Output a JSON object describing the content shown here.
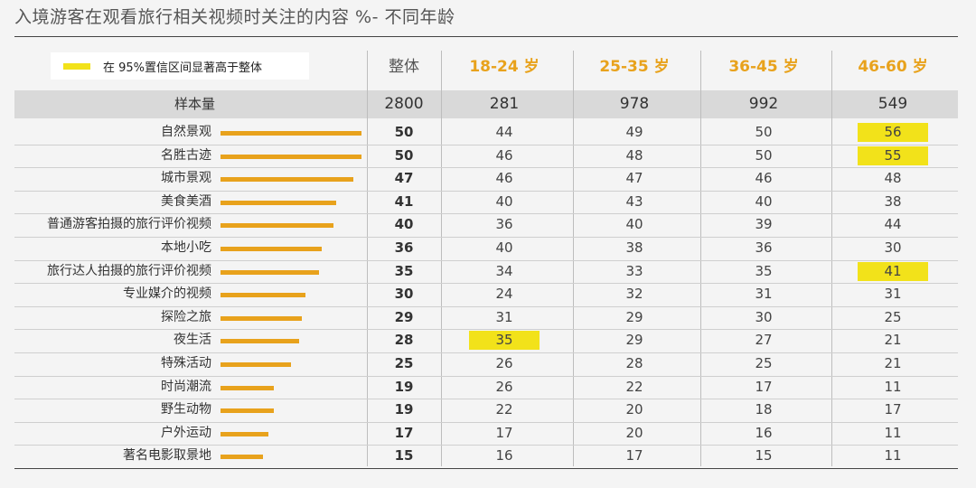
{
  "title": "入境游客在观看旅行相关视频时关注的内容 %- 不同年龄",
  "legend": {
    "label": "在 95%置信区间显著高于整体",
    "color": "#f2e21a"
  },
  "colors": {
    "bar": "#e8a21c",
    "highlight": "#f2e21a",
    "age_header": "#e8a21c",
    "overall_header": "#555555"
  },
  "sample_label": "样本量",
  "chart_data": {
    "type": "table",
    "title": "入境游客在观看旅行相关视频时关注的内容 %- 不同年龄",
    "columns": [
      "整体",
      "18-24 岁",
      "25-35 岁",
      "36-45 岁",
      "46-60 岁"
    ],
    "sample_sizes": [
      "2800",
      "281",
      "978",
      "992",
      "549"
    ],
    "bar_max": 50,
    "rows": [
      {
        "label": "自然景观",
        "values": [
          50,
          44,
          49,
          50,
          56
        ],
        "highlight": [
          false,
          false,
          false,
          false,
          true
        ]
      },
      {
        "label": "名胜古迹",
        "values": [
          50,
          46,
          48,
          50,
          55
        ],
        "highlight": [
          false,
          false,
          false,
          false,
          true
        ]
      },
      {
        "label": "城市景观",
        "values": [
          47,
          46,
          47,
          46,
          48
        ],
        "highlight": [
          false,
          false,
          false,
          false,
          false
        ]
      },
      {
        "label": "美食美酒",
        "values": [
          41,
          40,
          43,
          40,
          38
        ],
        "highlight": [
          false,
          false,
          false,
          false,
          false
        ]
      },
      {
        "label": "普通游客拍摄的旅行评价视频",
        "values": [
          40,
          36,
          40,
          39,
          44
        ],
        "highlight": [
          false,
          false,
          false,
          false,
          false
        ]
      },
      {
        "label": "本地小吃",
        "values": [
          36,
          40,
          38,
          36,
          30
        ],
        "highlight": [
          false,
          false,
          false,
          false,
          false
        ]
      },
      {
        "label": "旅行达人拍摄的旅行评价视频",
        "values": [
          35,
          34,
          33,
          35,
          41
        ],
        "highlight": [
          false,
          false,
          false,
          false,
          true
        ]
      },
      {
        "label": "专业媒介的视频",
        "values": [
          30,
          24,
          32,
          31,
          31
        ],
        "highlight": [
          false,
          false,
          false,
          false,
          false
        ]
      },
      {
        "label": "探险之旅",
        "values": [
          29,
          31,
          29,
          30,
          25
        ],
        "highlight": [
          false,
          false,
          false,
          false,
          false
        ]
      },
      {
        "label": "夜生活",
        "values": [
          28,
          35,
          29,
          27,
          21
        ],
        "highlight": [
          false,
          true,
          false,
          false,
          false
        ]
      },
      {
        "label": "特殊活动",
        "values": [
          25,
          26,
          28,
          25,
          21
        ],
        "highlight": [
          false,
          false,
          false,
          false,
          false
        ]
      },
      {
        "label": "时尚潮流",
        "values": [
          19,
          26,
          22,
          17,
          11
        ],
        "highlight": [
          false,
          false,
          false,
          false,
          false
        ]
      },
      {
        "label": "野生动物",
        "values": [
          19,
          22,
          20,
          18,
          17
        ],
        "highlight": [
          false,
          false,
          false,
          false,
          false
        ]
      },
      {
        "label": "户外运动",
        "values": [
          17,
          17,
          20,
          16,
          11
        ],
        "highlight": [
          false,
          false,
          false,
          false,
          false
        ]
      },
      {
        "label": "著名电影取景地",
        "values": [
          15,
          16,
          17,
          15,
          11
        ],
        "highlight": [
          false,
          false,
          false,
          false,
          false
        ]
      }
    ]
  }
}
